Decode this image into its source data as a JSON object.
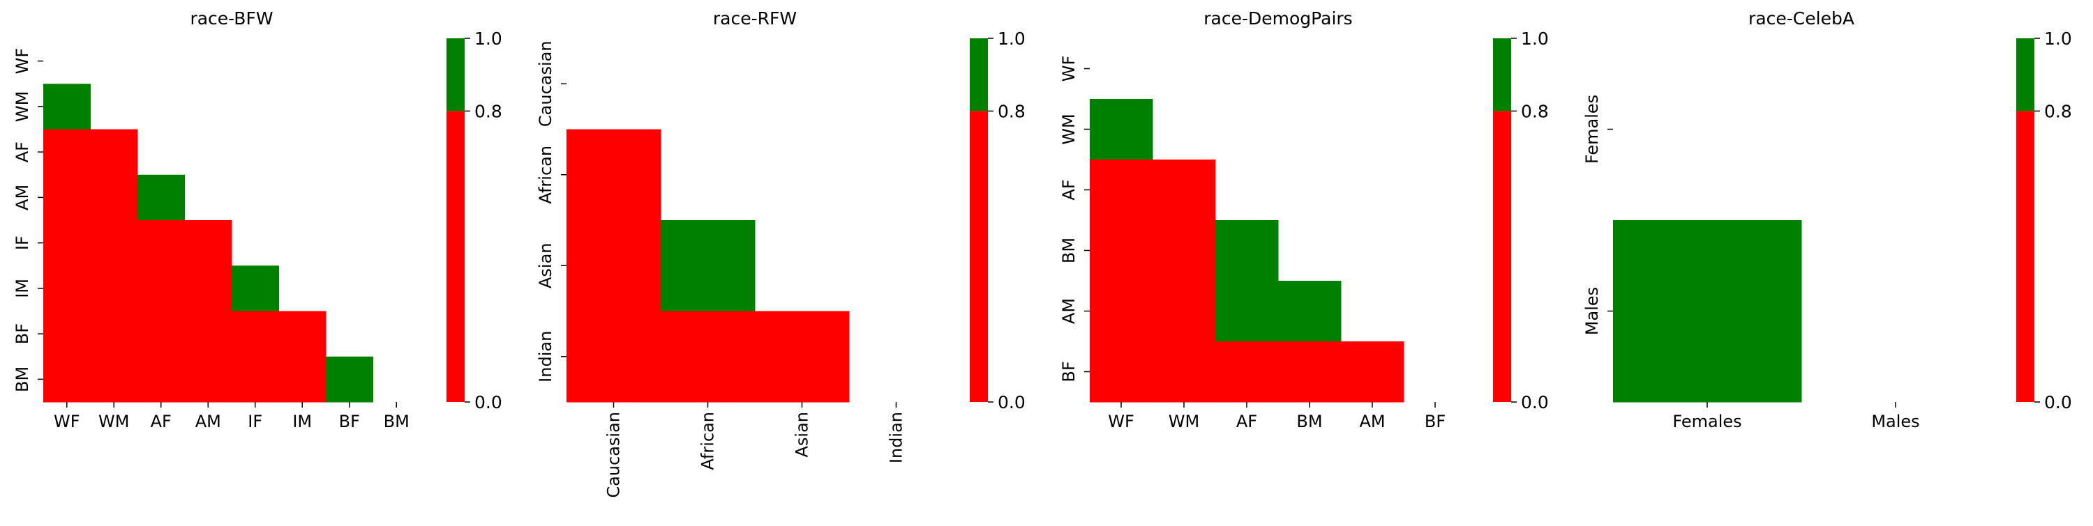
{
  "colors": {
    "above": "#008000",
    "below": "#FF0000"
  },
  "chart_data": [
    {
      "type": "heatmap",
      "title": "race-BFW",
      "categories": [
        "WF",
        "WM",
        "AF",
        "AM",
        "IF",
        "IM",
        "BF",
        "BM"
      ],
      "threshold": 0.8,
      "colorbar": {
        "min": 0.0,
        "max": 1.0,
        "ticks": [
          "0.0",
          "0.8",
          "1.0"
        ]
      },
      "cells": [
        [
          "WM",
          "WF",
          "above"
        ],
        [
          "AF",
          "WF",
          "below"
        ],
        [
          "AF",
          "WM",
          "below"
        ],
        [
          "AM",
          "WF",
          "below"
        ],
        [
          "AM",
          "WM",
          "below"
        ],
        [
          "AM",
          "AF",
          "above"
        ],
        [
          "IF",
          "WF",
          "below"
        ],
        [
          "IF",
          "WM",
          "below"
        ],
        [
          "IF",
          "AF",
          "below"
        ],
        [
          "IF",
          "AM",
          "below"
        ],
        [
          "IM",
          "WF",
          "below"
        ],
        [
          "IM",
          "WM",
          "below"
        ],
        [
          "IM",
          "AF",
          "below"
        ],
        [
          "IM",
          "AM",
          "below"
        ],
        [
          "IM",
          "IF",
          "above"
        ],
        [
          "BF",
          "WF",
          "below"
        ],
        [
          "BF",
          "WM",
          "below"
        ],
        [
          "BF",
          "AF",
          "below"
        ],
        [
          "BF",
          "AM",
          "below"
        ],
        [
          "BF",
          "IF",
          "below"
        ],
        [
          "BF",
          "IM",
          "below"
        ],
        [
          "BM",
          "WF",
          "below"
        ],
        [
          "BM",
          "WM",
          "below"
        ],
        [
          "BM",
          "AF",
          "below"
        ],
        [
          "BM",
          "AM",
          "below"
        ],
        [
          "BM",
          "IF",
          "below"
        ],
        [
          "BM",
          "IM",
          "below"
        ],
        [
          "BM",
          "BF",
          "above"
        ]
      ]
    },
    {
      "type": "heatmap",
      "title": "race-RFW",
      "categories": [
        "Caucasian",
        "African",
        "Asian",
        "Indian"
      ],
      "threshold": 0.8,
      "colorbar": {
        "min": 0.0,
        "max": 1.0,
        "ticks": [
          "0.0",
          "0.8",
          "1.0"
        ]
      },
      "cells": [
        [
          "African",
          "Caucasian",
          "below"
        ],
        [
          "Asian",
          "Caucasian",
          "below"
        ],
        [
          "Asian",
          "African",
          "above"
        ],
        [
          "Indian",
          "Caucasian",
          "below"
        ],
        [
          "Indian",
          "African",
          "below"
        ],
        [
          "Indian",
          "Asian",
          "below"
        ]
      ]
    },
    {
      "type": "heatmap",
      "title": "race-DemogPairs",
      "categories": [
        "WF",
        "WM",
        "AF",
        "BM",
        "AM",
        "BF"
      ],
      "threshold": 0.8,
      "colorbar": {
        "min": 0.0,
        "max": 1.0,
        "ticks": [
          "0.0",
          "0.8",
          "1.0"
        ]
      },
      "cells": [
        [
          "WM",
          "WF",
          "above"
        ],
        [
          "AF",
          "WF",
          "below"
        ],
        [
          "AF",
          "WM",
          "below"
        ],
        [
          "BM",
          "WF",
          "below"
        ],
        [
          "BM",
          "WM",
          "below"
        ],
        [
          "BM",
          "AF",
          "above"
        ],
        [
          "AM",
          "WF",
          "below"
        ],
        [
          "AM",
          "WM",
          "below"
        ],
        [
          "AM",
          "AF",
          "above"
        ],
        [
          "AM",
          "BM",
          "above"
        ],
        [
          "BF",
          "WF",
          "below"
        ],
        [
          "BF",
          "WM",
          "below"
        ],
        [
          "BF",
          "AF",
          "below"
        ],
        [
          "BF",
          "BM",
          "below"
        ],
        [
          "BF",
          "AM",
          "below"
        ]
      ]
    },
    {
      "type": "heatmap",
      "title": "race-CelebA",
      "categories": [
        "Females",
        "Males"
      ],
      "threshold": 0.8,
      "colorbar": {
        "min": 0.0,
        "max": 1.0,
        "ticks": [
          "0.0",
          "0.8",
          "1.0"
        ]
      },
      "cells": [
        [
          "Males",
          "Females",
          "above"
        ]
      ]
    }
  ]
}
